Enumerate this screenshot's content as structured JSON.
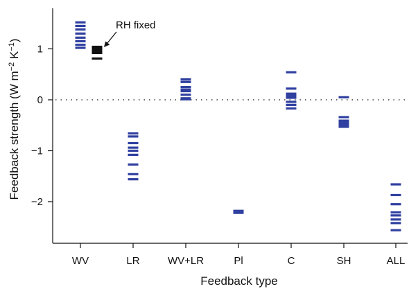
{
  "chart_data": {
    "type": "scatter",
    "xlabel": "Feedback type",
    "ylabel": {
      "main": "Feedback strength (W m",
      "sup1": "−2",
      "mid": " K",
      "sup2": "−1",
      "end": ")"
    },
    "categories": [
      "WV",
      "LR",
      "WV+LR",
      "Pl",
      "C",
      "SH",
      "ALL"
    ],
    "ylim": [
      -2.8,
      1.8
    ],
    "yticks": [
      -2,
      -1,
      0,
      1
    ],
    "ytick_labels": [
      "−2",
      "−1",
      "0",
      "1"
    ],
    "zero_line": "dotted",
    "series": [
      {
        "values": [
          [
            1.52,
            1.45,
            1.38,
            1.3,
            1.22,
            1.15,
            1.08,
            1.02
          ],
          [
            -0.66,
            -0.72,
            -0.85,
            -0.94,
            -1.0,
            -1.08,
            -1.27,
            -1.46,
            -1.56
          ],
          [
            0.4,
            0.35,
            0.25,
            0.2,
            0.17,
            0.1,
            0.03,
            0.01
          ],
          [
            -2.18,
            -2.2,
            -2.22
          ],
          [
            0.54,
            0.22,
            0.12,
            0.08,
            0.04,
            -0.04,
            -0.1,
            -0.17
          ],
          [
            0.05,
            -0.34,
            -0.41,
            -0.45,
            -0.49,
            -0.53
          ],
          [
            -1.66,
            -1.87,
            -2.05,
            -2.21,
            -2.27,
            -2.35,
            -2.42,
            -2.56
          ]
        ],
        "color": "#3040a0"
      }
    ],
    "annotation": {
      "text": "RH fixed",
      "category": "WV",
      "values": [
        1.04,
        1.0,
        0.96,
        0.92,
        0.81
      ],
      "color": "#111111"
    }
  }
}
